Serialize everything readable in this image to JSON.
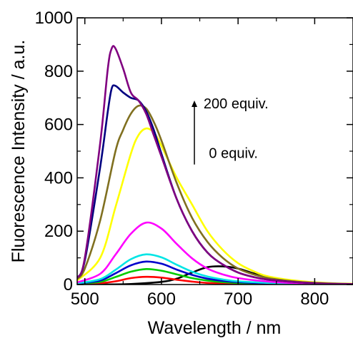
{
  "chart_data": {
    "type": "line",
    "xlabel": "Wavelength / nm",
    "ylabel": "Fluorescence Intensity / a.u.",
    "xlim": [
      490,
      850
    ],
    "ylim": [
      0,
      1000
    ],
    "xticks": [
      500,
      600,
      700,
      800
    ],
    "yticks": [
      0,
      200,
      400,
      600,
      800,
      1000
    ],
    "grid": false,
    "annotations": [
      {
        "text": "200 equiv.",
        "x": 655,
        "y": 660
      },
      {
        "text": "0 equiv.",
        "x": 662,
        "y": 475
      }
    ],
    "arrow": {
      "x": 643,
      "from": 450,
      "to": 690
    },
    "series": [
      {
        "color": "#000000",
        "x": [
          490,
          520,
          560,
          600,
          620,
          640,
          660,
          680,
          700,
          720,
          740,
          760,
          780,
          800,
          820,
          850
        ],
        "y": [
          0,
          0,
          2,
          10,
          22,
          45,
          65,
          68,
          60,
          42,
          28,
          18,
          10,
          6,
          4,
          2
        ]
      },
      {
        "color": "#ff0000",
        "x": [
          490,
          520,
          540,
          560,
          580,
          600,
          620,
          640,
          660,
          680,
          700,
          740,
          780,
          850
        ],
        "y": [
          2,
          5,
          12,
          24,
          29,
          26,
          18,
          11,
          6,
          4,
          2,
          1,
          0,
          0
        ]
      },
      {
        "color": "#00cc00",
        "x": [
          490,
          520,
          540,
          560,
          580,
          600,
          620,
          640,
          660,
          680,
          700,
          740,
          780,
          850
        ],
        "y": [
          3,
          10,
          28,
          48,
          58,
          52,
          38,
          24,
          15,
          9,
          6,
          3,
          1,
          0
        ]
      },
      {
        "color": "#0000cc",
        "x": [
          490,
          520,
          540,
          560,
          580,
          600,
          620,
          640,
          660,
          680,
          700,
          740,
          780,
          850
        ],
        "y": [
          4,
          15,
          42,
          72,
          86,
          78,
          56,
          36,
          22,
          14,
          9,
          4,
          2,
          0
        ]
      },
      {
        "color": "#00e5e5",
        "x": [
          490,
          520,
          540,
          560,
          580,
          600,
          620,
          640,
          660,
          680,
          700,
          740,
          780,
          850
        ],
        "y": [
          5,
          20,
          55,
          95,
          113,
          102,
          74,
          48,
          30,
          19,
          12,
          6,
          3,
          1
        ]
      },
      {
        "color": "#ff00ff",
        "x": [
          490,
          520,
          540,
          560,
          580,
          600,
          620,
          640,
          660,
          680,
          700,
          740,
          780,
          850
        ],
        "y": [
          8,
          40,
          112,
          190,
          232,
          210,
          152,
          98,
          60,
          38,
          24,
          11,
          5,
          2
        ]
      },
      {
        "color": "#ffff00",
        "x": [
          490,
          520,
          540,
          560,
          570,
          580,
          590,
          600,
          620,
          640,
          660,
          680,
          700,
          720,
          740,
          780,
          820,
          850
        ],
        "y": [
          15,
          100,
          290,
          490,
          560,
          585,
          570,
          520,
          400,
          300,
          200,
          130,
          80,
          50,
          30,
          13,
          5,
          3
        ]
      },
      {
        "color": "#807020",
        "x": [
          490,
          500,
          520,
          540,
          550,
          560,
          570,
          580,
          590,
          600,
          620,
          640,
          660,
          680,
          700,
          720,
          740,
          780,
          820,
          850
        ],
        "y": [
          20,
          60,
          240,
          500,
          580,
          640,
          670,
          660,
          610,
          540,
          380,
          250,
          160,
          100,
          60,
          38,
          24,
          10,
          4,
          2
        ]
      },
      {
        "color": "#000080",
        "x": [
          490,
          500,
          520,
          530,
          535,
          540,
          550,
          560,
          570,
          580,
          590,
          600,
          620,
          640,
          660,
          680,
          700,
          720,
          740,
          780,
          820,
          850
        ],
        "y": [
          25,
          90,
          440,
          650,
          735,
          745,
          720,
          700,
          690,
          650,
          580,
          490,
          320,
          200,
          120,
          75,
          45,
          28,
          18,
          8,
          3,
          2
        ]
      },
      {
        "color": "#800080",
        "x": [
          490,
          500,
          520,
          530,
          535,
          540,
          550,
          560,
          570,
          580,
          590,
          600,
          620,
          640,
          660,
          680,
          700,
          720,
          740,
          780,
          820,
          850
        ],
        "y": [
          25,
          100,
          530,
          810,
          885,
          885,
          810,
          720,
          690,
          640,
          560,
          480,
          320,
          200,
          120,
          75,
          45,
          28,
          18,
          8,
          3,
          2
        ]
      }
    ]
  }
}
